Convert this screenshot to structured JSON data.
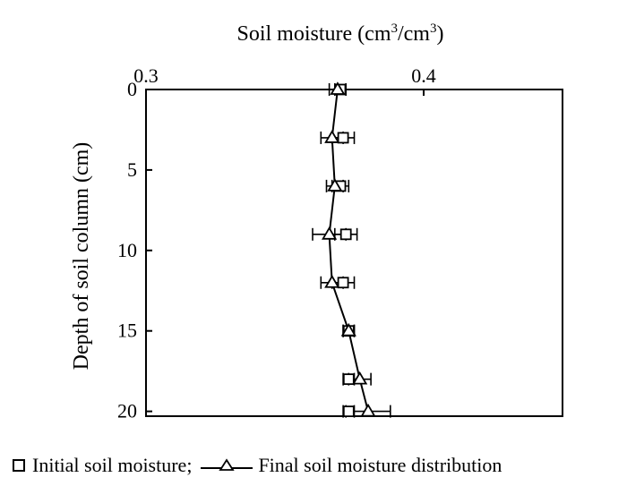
{
  "chart_data": {
    "type": "line",
    "title": "Soil moisture (cm³/cm³)",
    "title_base": "Soil moisture (cm",
    "title_sup1": "3",
    "title_mid": "/cm",
    "title_sup2": "3",
    "title_end": ")",
    "xlabel": "Soil moisture (cm³/cm³)",
    "ylabel": "Depth of soil column (cm)",
    "xlim": [
      0.3,
      0.45
    ],
    "ylim": [
      0,
      20.3
    ],
    "y_inverted": true,
    "x_axis_position": "top",
    "grid": false,
    "x_ticks": [
      0.3,
      0.4
    ],
    "x_tick_labels": [
      "0.3",
      "0.4"
    ],
    "y_ticks": [
      0,
      5,
      10,
      15,
      20
    ],
    "y_tick_labels": [
      "0",
      "5",
      "10",
      "15",
      "20"
    ],
    "series": [
      {
        "name": "Initial soil moisture",
        "marker": "square",
        "depth": [
          0,
          3,
          6,
          9,
          12,
          15,
          18,
          20
        ],
        "moisture": [
          0.37,
          0.371,
          0.37,
          0.372,
          0.371,
          0.373,
          0.373,
          0.373
        ],
        "error": [
          0.002,
          0.004,
          0.003,
          0.004,
          0.004,
          0.002,
          0.002,
          0.002
        ]
      },
      {
        "name": "Final soil moisture distribution",
        "marker": "triangle",
        "depth": [
          0,
          3,
          6,
          9,
          12,
          15,
          18,
          20
        ],
        "moisture": [
          0.369,
          0.367,
          0.368,
          0.366,
          0.367,
          0.373,
          0.377,
          0.38
        ],
        "error": [
          0.003,
          0.004,
          0.003,
          0.006,
          0.004,
          0.002,
          0.004,
          0.008
        ]
      }
    ]
  },
  "legend": {
    "initial_label": "Initial soil moisture;",
    "final_label": "Final soil moisture distribution"
  }
}
